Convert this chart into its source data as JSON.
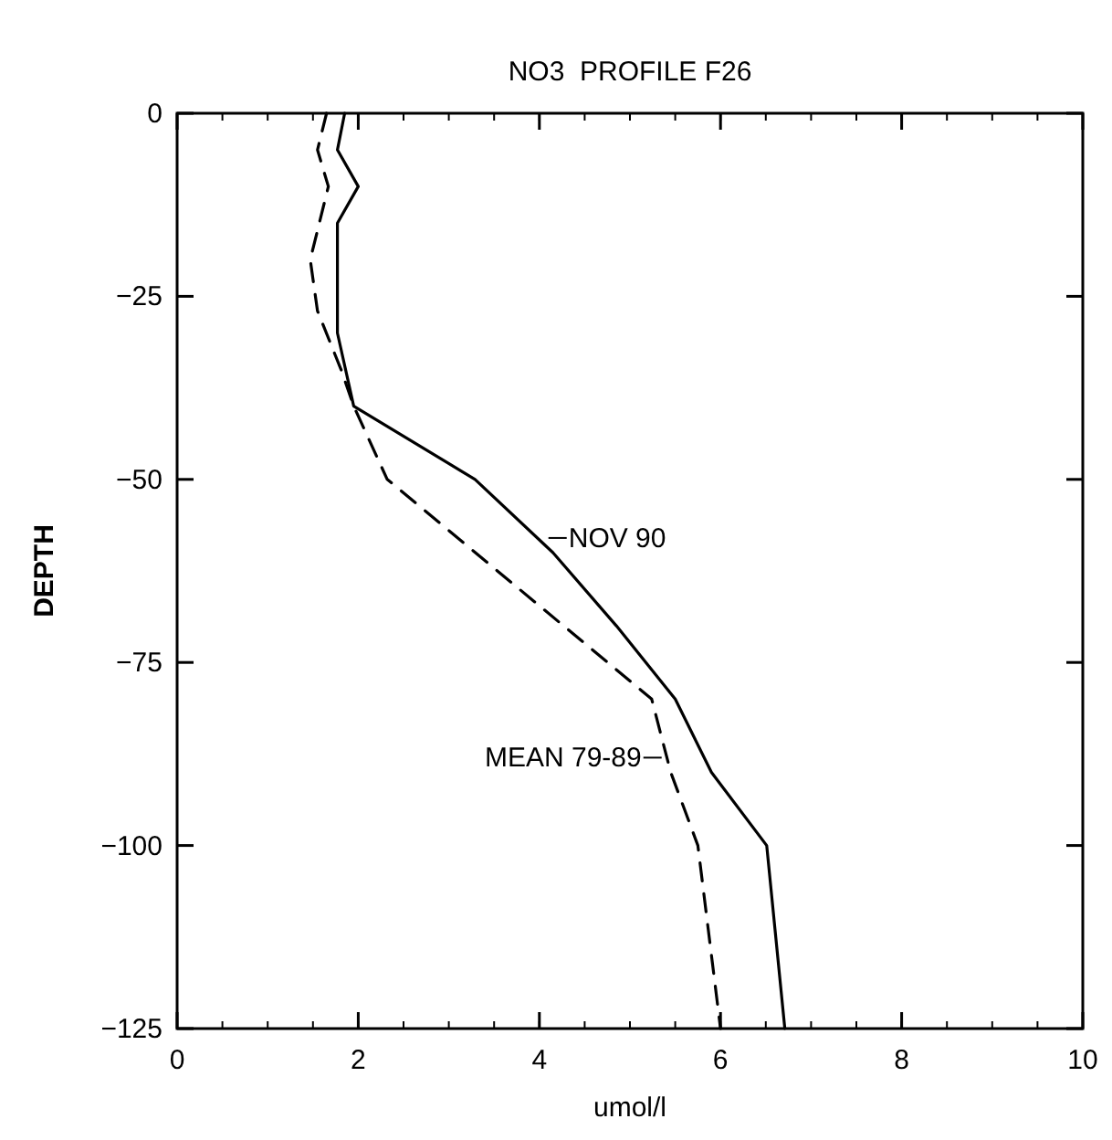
{
  "chart_data": {
    "type": "line",
    "title": "NO3  PROFILE F26",
    "xlabel": "umol/l",
    "ylabel": "DEPTH",
    "xlim": [
      0,
      10
    ],
    "xticks": [
      0,
      2,
      4,
      6,
      8,
      10
    ],
    "ylim": [
      -125,
      0
    ],
    "yticks": [
      -125,
      -100,
      -75,
      -50,
      -25,
      0
    ],
    "grid": false,
    "marker": "none",
    "series": [
      {
        "color": "#000000",
        "line_style": "solid",
        "x": [
          1.85,
          1.77,
          2.0,
          1.77,
          1.77,
          1.95,
          3.29,
          4.15,
          4.85,
          5.5,
          5.9,
          6.51,
          6.71
        ],
        "values": [
          0,
          -5,
          -10,
          -15,
          -30,
          -40,
          -50,
          -60,
          -70,
          -80,
          -90,
          -100,
          -125
        ]
      },
      {
        "color": "#000000",
        "line_style": "dashed",
        "x": [
          1.65,
          1.55,
          1.67,
          1.47,
          1.55,
          1.81,
          1.95,
          2.32,
          5.24,
          5.45,
          5.75,
          6.0
        ],
        "values": [
          0,
          -5,
          -10,
          -20,
          -27,
          -35,
          -40,
          -50,
          -80,
          -90,
          -100,
          -125
        ]
      }
    ],
    "annotations": [
      {
        "text": "NOV 90",
        "x": 4.1,
        "y": -58
      },
      {
        "text": "MEAN 79-89",
        "x": 5.35,
        "y": -88
      }
    ]
  }
}
